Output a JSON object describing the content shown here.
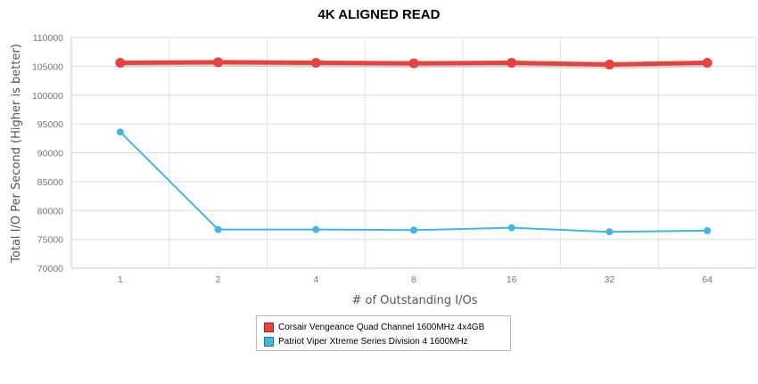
{
  "chart_data": {
    "type": "line",
    "title": "4K ALIGNED READ",
    "xlabel": "# of Outstanding I/Os",
    "ylabel": "Total I/O Per Second (Higher is better)",
    "categories": [
      "1",
      "2",
      "4",
      "8",
      "16",
      "32",
      "64"
    ],
    "ylim": [
      70000,
      110000
    ],
    "yticks": [
      "70000",
      "75000",
      "80000",
      "85000",
      "90000",
      "95000",
      "100000",
      "105000",
      "110000"
    ],
    "grid": true,
    "legend_position": "bottom",
    "series": [
      {
        "name": "Corsair Vengeance Quad Channel 1600MHz 4x4GB",
        "color": "#e8423f",
        "values": [
          105600,
          105700,
          105600,
          105500,
          105600,
          105300,
          105600
        ]
      },
      {
        "name": "Patriot Viper Xtreme Series Division 4 1600MHz",
        "color": "#41b6e6",
        "values": [
          93600,
          76700,
          76700,
          76600,
          77000,
          76300,
          76500
        ]
      }
    ]
  }
}
